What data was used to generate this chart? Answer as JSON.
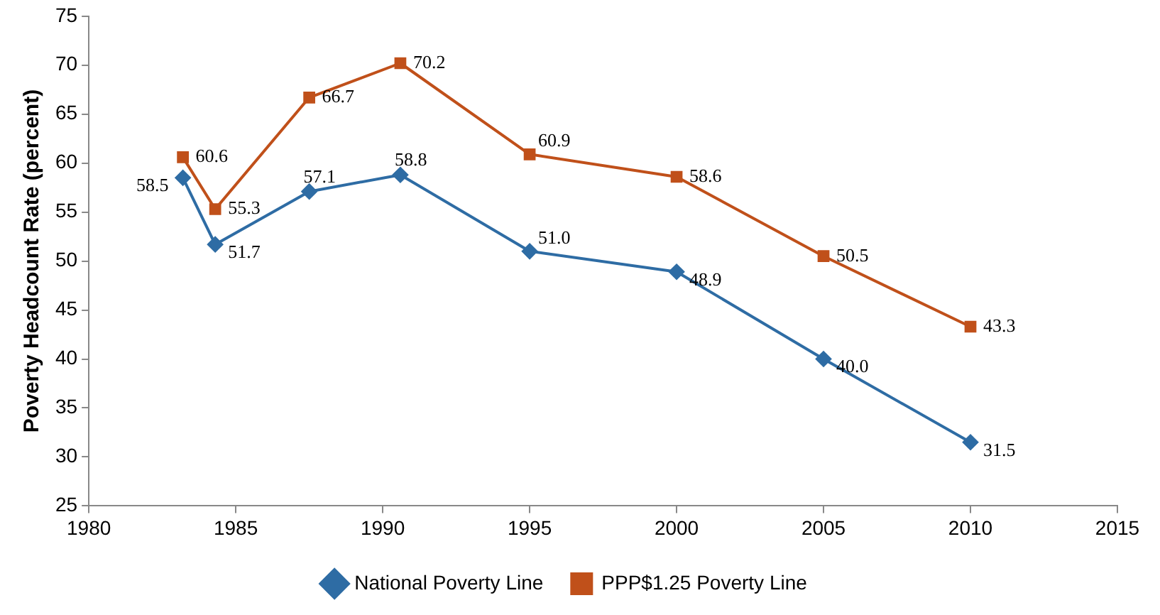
{
  "chart_data": {
    "type": "line",
    "ylabel": "Poverty Headcount Rate (percent)",
    "x": [
      1983.2,
      1984.3,
      1987.5,
      1990.6,
      1995,
      2000,
      2005,
      2010
    ],
    "series": [
      {
        "name": "National Poverty Line",
        "color": "#2e6ca4",
        "marker": "diamond",
        "values": [
          58.5,
          51.7,
          57.1,
          58.8,
          51.0,
          48.9,
          40.0,
          31.5
        ],
        "value_labels": [
          "58.5",
          "51.7",
          "57.1",
          "58.8",
          "51.0",
          "48.9",
          "40.0",
          "31.5"
        ]
      },
      {
        "name": "PPP$1.25 Poverty Line",
        "color": "#c0501a",
        "marker": "square",
        "values": [
          60.6,
          55.3,
          66.7,
          70.2,
          60.9,
          58.6,
          50.5,
          43.3
        ],
        "value_labels": [
          "60.6",
          "55.3",
          "66.7",
          "70.2",
          "60.9",
          "58.6",
          "50.5",
          "43.3"
        ]
      }
    ],
    "xlim": [
      1980,
      2015
    ],
    "xticks": [
      1980,
      1985,
      1990,
      1995,
      2000,
      2005,
      2010,
      2015
    ],
    "ylim": [
      25,
      75
    ],
    "yticks": [
      25,
      30,
      35,
      40,
      45,
      50,
      55,
      60,
      65,
      70,
      75
    ],
    "grid": false,
    "legend": "bottom",
    "line_style": "solid"
  }
}
